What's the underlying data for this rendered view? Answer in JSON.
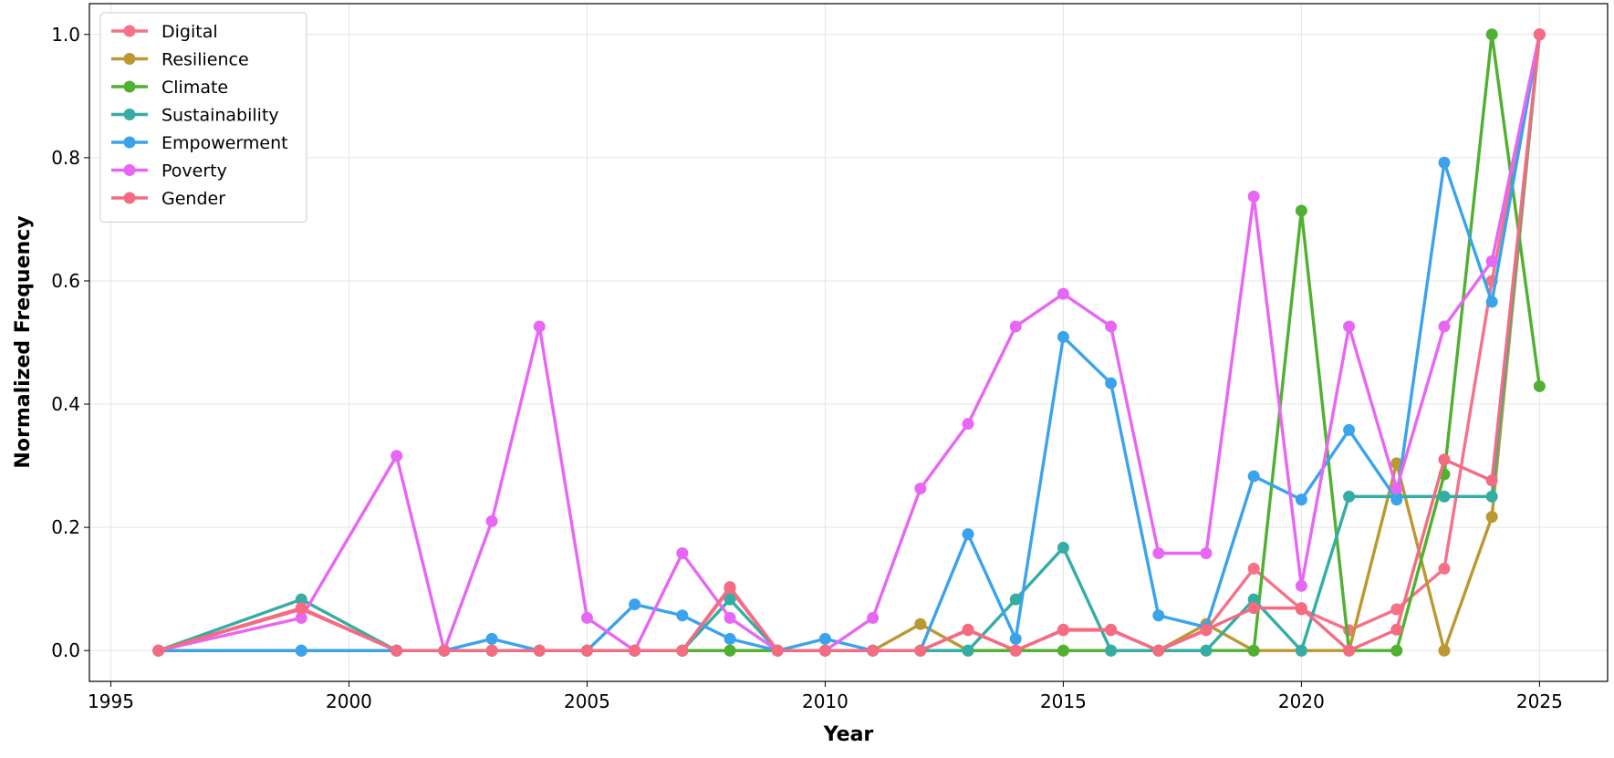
{
  "chart_data": {
    "type": "line",
    "x_label": "Year",
    "y_label": "Normalized Frequency",
    "x": [
      1996,
      1999,
      2001,
      2002,
      2003,
      2004,
      2005,
      2006,
      2007,
      2008,
      2009,
      2010,
      2011,
      2012,
      2013,
      2014,
      2015,
      2016,
      2017,
      2018,
      2019,
      2020,
      2021,
      2022,
      2023,
      2024,
      2025
    ],
    "series": [
      {
        "name": "Digital",
        "color": "#f77189",
        "values": [
          0,
          0.067,
          0,
          0,
          0,
          0,
          0,
          0,
          0,
          0.1,
          0,
          0,
          0,
          0,
          0.033,
          0,
          0.033,
          0.033,
          0,
          0.033,
          0.133,
          0.067,
          0.033,
          0.067,
          0.133,
          0.6,
          1.0
        ]
      },
      {
        "name": "Resilience",
        "color": "#bb9832",
        "values": [
          0,
          0,
          0,
          0,
          0,
          0,
          0,
          0,
          0,
          0,
          0,
          0,
          0,
          0.043,
          0,
          0,
          0,
          0,
          0,
          0.043,
          0,
          0,
          0,
          0.304,
          0,
          0.217,
          1.0
        ]
      },
      {
        "name": "Climate",
        "color": "#50b131",
        "values": [
          0,
          0,
          0,
          0,
          0,
          0,
          0,
          0,
          0,
          0,
          0,
          0,
          0,
          0,
          0,
          0,
          0,
          0,
          0,
          0,
          0,
          0.714,
          0,
          0,
          0.286,
          1.0,
          0.429
        ]
      },
      {
        "name": "Sustainability",
        "color": "#36ada4",
        "values": [
          0,
          0.083,
          0,
          0,
          0,
          0,
          0,
          0,
          0,
          0.083,
          0,
          0,
          0,
          0,
          0,
          0.083,
          0.167,
          0,
          0,
          0,
          0.083,
          0,
          0.25,
          0.25,
          0.25,
          0.25,
          1.0
        ]
      },
      {
        "name": "Empowerment",
        "color": "#3ba3ec",
        "values": [
          0,
          0,
          0,
          0,
          0.019,
          0,
          0,
          0.075,
          0.057,
          0.019,
          0,
          0.019,
          0,
          0,
          0.189,
          0.019,
          0.509,
          0.434,
          0.057,
          0.038,
          0.283,
          0.245,
          0.358,
          0.245,
          0.792,
          0.566,
          1.0
        ]
      },
      {
        "name": "Poverty",
        "color": "#e866f4",
        "values": [
          0,
          0.053,
          0.316,
          0,
          0.21,
          0.526,
          0.053,
          0,
          0.158,
          0.053,
          0,
          0,
          0.053,
          0.263,
          0.368,
          0.526,
          0.579,
          0.526,
          0.158,
          0.158,
          0.737,
          0.105,
          0.526,
          0.263,
          0.526,
          0.632,
          1.0
        ]
      },
      {
        "name": "Gender",
        "color": "#f46b82",
        "values": [
          0,
          0.069,
          0,
          0,
          0,
          0,
          0,
          0,
          0,
          0.103,
          0,
          0,
          0,
          0,
          0.034,
          0,
          0.034,
          0.034,
          0,
          0.034,
          0.069,
          0.069,
          0,
          0.034,
          0.31,
          0.276,
          1.0
        ]
      }
    ],
    "xlim": [
      1994.55,
      2026.43
    ],
    "ylim": [
      -0.05,
      1.05
    ],
    "xticks": [
      1995,
      2000,
      2005,
      2010,
      2015,
      2020,
      2025
    ],
    "yticks": [
      {
        "value": 0,
        "label": "0.0"
      },
      {
        "value": 0.2,
        "label": "0.2"
      },
      {
        "value": 0.4,
        "label": "0.4"
      },
      {
        "value": 0.6,
        "label": "0.6"
      },
      {
        "value": 0.8,
        "label": "0.8"
      },
      {
        "value": 1,
        "label": "1.0"
      }
    ],
    "grid": true,
    "legend": "upper-left"
  }
}
